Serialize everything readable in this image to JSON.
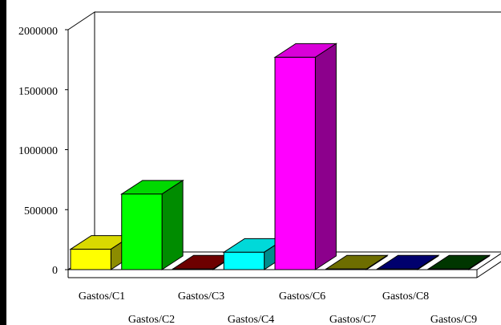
{
  "chart_data": {
    "type": "bar",
    "categories": [
      "Gastos/C1",
      "Gastos/C2",
      "Gastos/C3",
      "Gastos/C4",
      "Gastos/C6",
      "Gastos/C7",
      "Gastos/C8",
      "Gastos/C9"
    ],
    "values": [
      170000,
      630000,
      5000,
      145000,
      1770000,
      5000,
      5000,
      5000
    ],
    "colors": [
      "#ffff00",
      "#00ff00",
      "#800000",
      "#00ffff",
      "#ff00ff",
      "#808000",
      "#000080",
      "#004000"
    ],
    "yticks": [
      "0",
      "500000",
      "1000000",
      "1500000",
      "2000000"
    ],
    "ylim": [
      0,
      2000000
    ],
    "grid": false,
    "style": "3d"
  }
}
